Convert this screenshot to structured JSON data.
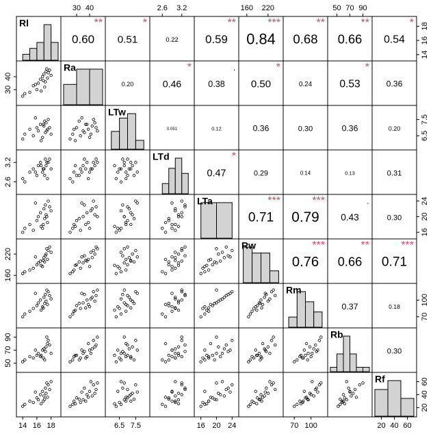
{
  "chart_data": {
    "type": "correlation-matrix",
    "variables": [
      {
        "name": "Rl",
        "lim": [
          13.5,
          19
        ],
        "ticks": [
          14,
          16,
          18
        ],
        "bins": [
          14,
          15,
          16,
          17,
          18,
          19
        ],
        "counts": [
          1,
          2,
          3,
          6,
          3
        ]
      },
      {
        "name": "Ra",
        "lim": [
          20,
          50
        ],
        "ticks": [
          30,
          40
        ],
        "bins": [
          20,
          30,
          40,
          50
        ],
        "counts": [
          4,
          7,
          7
        ]
      },
      {
        "name": "LTw",
        "lim": [
          5.8,
          8.2
        ],
        "ticks": [
          6.5,
          7.5
        ],
        "bins": [
          6,
          6.5,
          7,
          7.5,
          8
        ],
        "counts": [
          4,
          7,
          8,
          2
        ]
      },
      {
        "name": "LTd",
        "lim": [
          2.3,
          3.5
        ],
        "ticks": [
          2.6,
          3.2
        ],
        "bins": [
          2.6,
          2.8,
          3.0,
          3.2,
          3.4
        ],
        "counts": [
          2,
          5,
          7,
          4
        ]
      },
      {
        "name": "LTa",
        "lim": [
          15,
          25
        ],
        "ticks": [
          16,
          20,
          24
        ],
        "bins": [
          16,
          20,
          24
        ],
        "counts": [
          9,
          9
        ]
      },
      {
        "name": "Rw",
        "lim": [
          145,
          255
        ],
        "ticks": [
          160,
          220
        ],
        "bins": [
          150,
          175,
          200,
          225,
          250
        ],
        "counts": [
          6,
          5,
          5,
          2
        ]
      },
      {
        "name": "Rm",
        "lim": [
          55,
          125
        ],
        "ticks": [
          70,
          100
        ],
        "bins": [
          60,
          75,
          90,
          105,
          120
        ],
        "counts": [
          2,
          7,
          5,
          3
        ]
      },
      {
        "name": "Rb",
        "lim": [
          40,
          100
        ],
        "ticks": [
          50,
          70,
          90
        ],
        "bins": [
          40,
          50,
          60,
          70,
          80,
          90,
          100
        ],
        "counts": [
          1,
          4,
          8,
          4,
          1,
          1
        ]
      },
      {
        "name": "Rf",
        "lim": [
          10,
          70
        ],
        "ticks": [
          20,
          40,
          60
        ],
        "bins": [
          10,
          30,
          50,
          70
        ],
        "counts": [
          6,
          8,
          4
        ]
      }
    ],
    "correlations": [
      [
        0.6,
        0.51,
        0.22,
        0.59,
        0.84,
        0.68,
        0.66,
        0.54
      ],
      [
        0.2,
        0.46,
        0.38,
        0.5,
        0.24,
        0.53,
        0.36
      ],
      [
        0.051,
        0.12,
        0.36,
        0.3,
        0.36,
        0.2
      ],
      [
        0.47,
        0.29,
        0.14,
        0.13,
        0.31
      ],
      [
        0.71,
        0.79,
        0.43,
        0.3
      ],
      [
        0.76,
        0.66,
        0.71
      ],
      [
        0.37,
        0.18
      ],
      [
        0.3
      ]
    ],
    "value_labels": [
      [
        "0.60",
        "0.51",
        "0.22",
        "0.59",
        "0.84",
        "0.68",
        "0.66",
        "0.54"
      ],
      [
        "0.20",
        "0.46",
        "0.38",
        "0.50",
        "0.24",
        "0.53",
        "0.36"
      ],
      [
        "0.051",
        "0.12",
        "0.36",
        "0.30",
        "0.36",
        "0.20"
      ],
      [
        "0.47",
        "0.29",
        "0.14",
        "0.13",
        "0.31"
      ],
      [
        "0.71",
        "0.79",
        "0.43",
        "0.30"
      ],
      [
        "0.76",
        "0.66",
        "0.71"
      ],
      [
        "0.37",
        "0.18"
      ],
      [
        "0.30"
      ]
    ],
    "stars": [
      [
        "**",
        "*",
        null,
        "**",
        "***",
        "**",
        "**",
        "*"
      ],
      [
        null,
        "*",
        ".",
        "*",
        null,
        "*",
        null
      ],
      [
        null,
        null,
        null,
        null,
        null,
        null
      ],
      [
        "*",
        null,
        null,
        null,
        null
      ],
      [
        "***",
        "***",
        ".",
        null
      ],
      [
        "***",
        "**",
        "***"
      ],
      [
        null,
        null
      ],
      [
        null
      ]
    ],
    "observations": [
      [
        14.0,
        25,
        6.3,
        2.7,
        16,
        165,
        70,
        52,
        22
      ],
      [
        14.3,
        27,
        6.6,
        2.6,
        17,
        170,
        75,
        55,
        25
      ],
      [
        15.0,
        28,
        6.9,
        2.9,
        18,
        175,
        80,
        60,
        30
      ],
      [
        15.5,
        33,
        6.5,
        3.0,
        16.5,
        180,
        85,
        58,
        28
      ],
      [
        16.0,
        30,
        7.0,
        2.8,
        19,
        190,
        90,
        62,
        35
      ],
      [
        16.2,
        35,
        6.8,
        3.1,
        20,
        195,
        95,
        65,
        32
      ],
      [
        16.5,
        38,
        7.2,
        3.2,
        21,
        200,
        100,
        60,
        40
      ],
      [
        16.8,
        40,
        6.4,
        2.9,
        17,
        185,
        88,
        70,
        45
      ],
      [
        17.0,
        42,
        7.1,
        3.0,
        22,
        210,
        105,
        72,
        38
      ],
      [
        17.2,
        36,
        6.7,
        3.3,
        23,
        215,
        110,
        68,
        50
      ],
      [
        17.3,
        44,
        7.3,
        3.1,
        20.5,
        220,
        98,
        75,
        42
      ],
      [
        17.5,
        39,
        6.9,
        2.7,
        18.5,
        205,
        92,
        80,
        36
      ],
      [
        17.6,
        43,
        7.5,
        3.2,
        24,
        230,
        115,
        85,
        55
      ],
      [
        17.8,
        45,
        7.0,
        3.3,
        22.5,
        240,
        108,
        78,
        48
      ],
      [
        18.0,
        41,
        6.6,
        3.0,
        21.5,
        225,
        102,
        65,
        60
      ],
      [
        17.1,
        32,
        7.4,
        2.8,
        19.5,
        198,
        94,
        55,
        33
      ],
      [
        16.6,
        29,
        6.2,
        3.1,
        17.5,
        188,
        82,
        62,
        26
      ],
      [
        15.8,
        34,
        7.6,
        2.9,
        23.5,
        212,
        112,
        70,
        44
      ],
      [
        17.4,
        46,
        6.8,
        3.2,
        20,
        235,
        118,
        90,
        58
      ],
      [
        16.9,
        37,
        7.2,
        3.0,
        18,
        202,
        86,
        58,
        30
      ]
    ],
    "point_color": "#000000",
    "hist_color": "#d3d3d3",
    "star_color": "#c8506e"
  }
}
